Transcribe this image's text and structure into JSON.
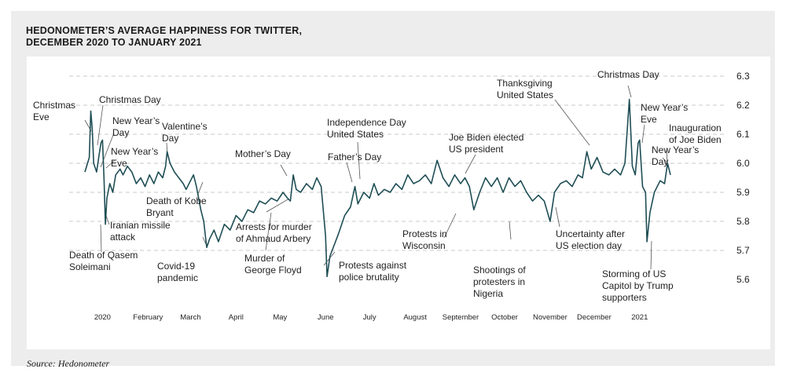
{
  "title_line1": "HEDONOMETER’S AVERAGE HAPPINESS FOR TWITTER,",
  "title_line2": "DECEMBER 2020 TO JANUARY 2021",
  "source": "Source: Hedonometer",
  "colors": {
    "line": "#1f4e55",
    "grid": "#c8c8c8",
    "panel": "#ededed",
    "leader": "#555555"
  },
  "chart_data": {
    "type": "line",
    "title": "HEDONOMETER’S AVERAGE HAPPINESS FOR TWITTER, DECEMBER 2020 TO JANUARY 2021",
    "xlabel": "",
    "ylabel": "",
    "ylim": [
      5.5,
      6.3
    ],
    "yticks": [
      "6.3",
      "6.2",
      "6.1",
      "6.0",
      "5.9",
      "5.8",
      "5.7",
      "5.6"
    ],
    "grid": "horizontal dashed",
    "x_tick_labels": [
      "2020",
      "February",
      "March",
      "April",
      "May",
      "June",
      "July",
      "August",
      "September",
      "October",
      "November",
      "December",
      "2021"
    ],
    "series_points": [
      [
        "2019-12-20",
        5.97
      ],
      [
        "2019-12-23",
        6.02
      ],
      [
        "2019-12-24",
        6.18
      ],
      [
        "2019-12-25",
        6.12
      ],
      [
        "2019-12-26",
        6.0
      ],
      [
        "2019-12-28",
        5.97
      ],
      [
        "2019-12-30",
        6.04
      ],
      [
        "2019-12-31",
        6.07
      ],
      [
        "2020-01-01",
        6.08
      ],
      [
        "2020-01-02",
        5.95
      ],
      [
        "2020-01-03",
        5.79
      ],
      [
        "2020-01-04",
        5.88
      ],
      [
        "2020-01-06",
        5.93
      ],
      [
        "2020-01-08",
        5.9
      ],
      [
        "2020-01-10",
        5.96
      ],
      [
        "2020-01-13",
        5.98
      ],
      [
        "2020-01-15",
        5.96
      ],
      [
        "2020-01-18",
        5.99
      ],
      [
        "2020-01-21",
        5.97
      ],
      [
        "2020-01-24",
        5.93
      ],
      [
        "2020-01-27",
        5.95
      ],
      [
        "2020-01-30",
        5.92
      ],
      [
        "2020-02-02",
        5.96
      ],
      [
        "2020-02-05",
        5.93
      ],
      [
        "2020-02-08",
        5.97
      ],
      [
        "2020-02-11",
        5.95
      ],
      [
        "2020-02-13",
        5.99
      ],
      [
        "2020-02-14",
        6.04
      ],
      [
        "2020-02-16",
        6.0
      ],
      [
        "2020-02-19",
        5.97
      ],
      [
        "2020-02-22",
        5.95
      ],
      [
        "2020-02-25",
        5.93
      ],
      [
        "2020-02-27",
        5.91
      ],
      [
        "2020-03-01",
        5.94
      ],
      [
        "2020-03-03",
        5.96
      ],
      [
        "2020-03-05",
        5.92
      ],
      [
        "2020-03-08",
        5.84
      ],
      [
        "2020-03-10",
        5.8
      ],
      [
        "2020-03-12",
        5.71
      ],
      [
        "2020-03-14",
        5.74
      ],
      [
        "2020-03-17",
        5.77
      ],
      [
        "2020-03-20",
        5.73
      ],
      [
        "2020-03-24",
        5.79
      ],
      [
        "2020-03-28",
        5.77
      ],
      [
        "2020-04-01",
        5.82
      ],
      [
        "2020-04-05",
        5.8
      ],
      [
        "2020-04-09",
        5.84
      ],
      [
        "2020-04-13",
        5.83
      ],
      [
        "2020-04-17",
        5.87
      ],
      [
        "2020-04-21",
        5.86
      ],
      [
        "2020-04-25",
        5.88
      ],
      [
        "2020-04-29",
        5.87
      ],
      [
        "2020-05-03",
        5.9
      ],
      [
        "2020-05-06",
        5.88
      ],
      [
        "2020-05-08",
        5.87
      ],
      [
        "2020-05-10",
        5.96
      ],
      [
        "2020-05-12",
        5.91
      ],
      [
        "2020-05-15",
        5.9
      ],
      [
        "2020-05-19",
        5.93
      ],
      [
        "2020-05-23",
        5.91
      ],
      [
        "2020-05-26",
        5.95
      ],
      [
        "2020-05-29",
        5.92
      ],
      [
        "2020-06-01",
        5.75
      ],
      [
        "2020-06-02",
        5.61
      ],
      [
        "2020-06-04",
        5.68
      ],
      [
        "2020-06-07",
        5.72
      ],
      [
        "2020-06-10",
        5.76
      ],
      [
        "2020-06-14",
        5.82
      ],
      [
        "2020-06-18",
        5.85
      ],
      [
        "2020-06-21",
        5.92
      ],
      [
        "2020-06-23",
        5.86
      ],
      [
        "2020-06-27",
        5.9
      ],
      [
        "2020-07-01",
        5.88
      ],
      [
        "2020-07-04",
        5.93
      ],
      [
        "2020-07-07",
        5.89
      ],
      [
        "2020-07-11",
        5.91
      ],
      [
        "2020-07-15",
        5.9
      ],
      [
        "2020-07-19",
        5.93
      ],
      [
        "2020-07-23",
        5.91
      ],
      [
        "2020-07-27",
        5.96
      ],
      [
        "2020-07-31",
        5.93
      ],
      [
        "2020-08-04",
        5.94
      ],
      [
        "2020-08-08",
        5.96
      ],
      [
        "2020-08-12",
        5.93
      ],
      [
        "2020-08-16",
        6.01
      ],
      [
        "2020-08-20",
        5.95
      ],
      [
        "2020-08-24",
        5.92
      ],
      [
        "2020-08-28",
        5.96
      ],
      [
        "2020-09-01",
        5.93
      ],
      [
        "2020-09-04",
        5.95
      ],
      [
        "2020-09-07",
        5.92
      ],
      [
        "2020-09-10",
        5.84
      ],
      [
        "2020-09-14",
        5.9
      ],
      [
        "2020-09-18",
        5.95
      ],
      [
        "2020-09-22",
        5.92
      ],
      [
        "2020-09-26",
        5.95
      ],
      [
        "2020-09-30",
        5.9
      ],
      [
        "2020-10-04",
        5.95
      ],
      [
        "2020-10-08",
        5.92
      ],
      [
        "2020-10-12",
        5.94
      ],
      [
        "2020-10-16",
        5.9
      ],
      [
        "2020-10-20",
        5.87
      ],
      [
        "2020-10-24",
        5.89
      ],
      [
        "2020-10-28",
        5.87
      ],
      [
        "2020-11-01",
        5.8
      ],
      [
        "2020-11-04",
        5.9
      ],
      [
        "2020-11-08",
        5.93
      ],
      [
        "2020-11-12",
        5.94
      ],
      [
        "2020-11-16",
        5.92
      ],
      [
        "2020-11-20",
        5.96
      ],
      [
        "2020-11-23",
        5.95
      ],
      [
        "2020-11-26",
        6.04
      ],
      [
        "2020-11-29",
        5.98
      ],
      [
        "2020-12-03",
        6.02
      ],
      [
        "2020-12-07",
        5.97
      ],
      [
        "2020-12-11",
        5.96
      ],
      [
        "2020-12-15",
        5.98
      ],
      [
        "2020-12-19",
        5.96
      ],
      [
        "2020-12-22",
        6.0
      ],
      [
        "2020-12-25",
        6.22
      ],
      [
        "2020-12-27",
        5.99
      ],
      [
        "2020-12-29",
        5.96
      ],
      [
        "2020-12-31",
        6.07
      ],
      [
        "2021-01-01",
        6.08
      ],
      [
        "2021-01-03",
        5.92
      ],
      [
        "2021-01-05",
        5.9
      ],
      [
        "2021-01-06",
        5.73
      ],
      [
        "2021-01-08",
        5.83
      ],
      [
        "2021-01-11",
        5.9
      ],
      [
        "2021-01-15",
        5.94
      ],
      [
        "2021-01-18",
        5.93
      ],
      [
        "2021-01-20",
        6.0
      ],
      [
        "2021-01-22",
        5.96
      ]
    ],
    "annotations": [
      {
        "lines": [
          "Christmas",
          "Eve"
        ]
      },
      {
        "lines": [
          "Christmas Day"
        ]
      },
      {
        "lines": [
          "New Year’s",
          "Day"
        ]
      },
      {
        "lines": [
          "Valentine’s",
          "Day"
        ]
      },
      {
        "lines": [
          "New Year’s",
          "Eve"
        ]
      },
      {
        "lines": [
          "Iranian missile",
          "attack"
        ]
      },
      {
        "lines": [
          "Death of Qasem",
          "Soleimani"
        ]
      },
      {
        "lines": [
          "Death of Kobe",
          "Bryant"
        ]
      },
      {
        "lines": [
          "Covid-19",
          "pandemic"
        ]
      },
      {
        "lines": [
          "Mother’s Day"
        ]
      },
      {
        "lines": [
          "Arrests for murder",
          "of Ahmaud Arbery"
        ]
      },
      {
        "lines": [
          "Murder of",
          "George Floyd"
        ]
      },
      {
        "lines": [
          "Independence Day",
          "United States"
        ]
      },
      {
        "lines": [
          "Father’s Day"
        ]
      },
      {
        "lines": [
          "Protests against",
          "police brutality"
        ]
      },
      {
        "lines": [
          "Protests in",
          "Wisconsin"
        ]
      },
      {
        "lines": [
          "Joe Biden elected",
          "US president"
        ]
      },
      {
        "lines": [
          "Shootings of",
          "protesters in",
          "Nigeria"
        ]
      },
      {
        "lines": [
          "Thanksgiving",
          "United States"
        ]
      },
      {
        "lines": [
          "Uncertainty after",
          "US election day"
        ]
      },
      {
        "lines": [
          "Christmas Day"
        ]
      },
      {
        "lines": [
          "New Year’s",
          "Eve"
        ]
      },
      {
        "lines": [
          "Inauguration",
          "of Joe Biden"
        ]
      },
      {
        "lines": [
          "New Year’s",
          "Day"
        ]
      },
      {
        "lines": [
          "Storming of US",
          "Capitol by Trump",
          "supporters"
        ]
      }
    ]
  }
}
